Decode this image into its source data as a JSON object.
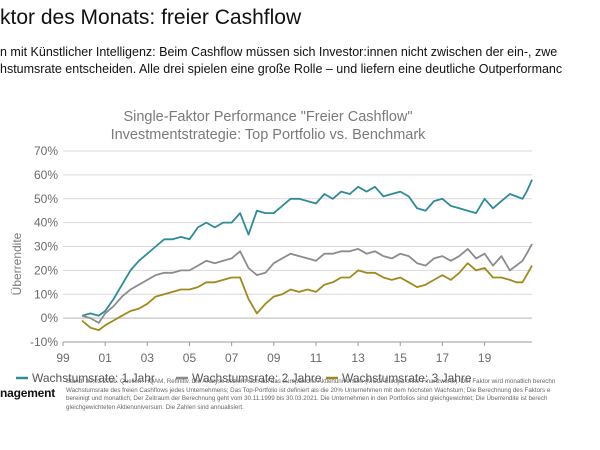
{
  "page": {
    "headline": "ktor des Monats: freier Cashflow",
    "intro_lines": [
      "n mit Künstlicher Intelligenz: Beim Cashflow müssen sich Investor:innen nicht zwischen der ein-, zwe",
      "hstumsrate entscheiden. Alle drei spielen eine große Rolle – und liefern eine deutliche Outperformanc"
    ],
    "brand": "nagement",
    "footnote_lines": [
      "Stand: 30.03.2021. Quellen: HQAM, Refinitiv. Die Analyse bezieht sich auf das europäische Aktienuniversum (MSCI Europa ohne Finanzwerte). Der Faktor wird monatlich berechn",
      "Wachstumsrate des freien Cashflows jedes Unternehmens; Das Top-Portfolio ist definiert als die 20% Unternehmen mit dem höchsten Wachstum; Die Berechnung des Faktors e",
      "bereinigt und monatlich; Der Zeitraum der Berechnung geht vom 30.11.1999 bis 30.03.2021. Die Unternehmen in den Portfolios sind gleichgewichtet; Die Überrendite ist berech",
      "gleichgewichteten Aktienuniversum. Die Zahlen sind annualisiert."
    ]
  },
  "chart_data": {
    "type": "line",
    "title_lines": [
      "Single-Faktor Performance \"Freier Cashflow\"",
      "Investmentstrategie: Top Portfolio vs. Benchmark"
    ],
    "xlabel": "",
    "ylabel": "Überrendite",
    "x_tick_labels": [
      "99",
      "01",
      "03",
      "05",
      "07",
      "09",
      "11",
      "13",
      "15",
      "17",
      "19"
    ],
    "x_tick_years": [
      1999,
      2001,
      2003,
      2005,
      2007,
      2009,
      2011,
      2013,
      2015,
      2017,
      2019
    ],
    "xlim": [
      1999.0,
      2021.25
    ],
    "y_tick_labels": [
      "-10%",
      "0%",
      "10%",
      "20%",
      "30%",
      "40%",
      "50%",
      "60%",
      "70%"
    ],
    "y_ticks": [
      -10,
      0,
      10,
      20,
      30,
      40,
      50,
      60,
      70
    ],
    "ylim": [
      -10,
      70
    ],
    "grid": true,
    "legend_position": "bottom",
    "series": [
      {
        "name": "Wachstumsrate: 1 Jahr",
        "color": "#2e8b99",
        "x": [
          1999.9,
          2000.3,
          2000.7,
          2001.0,
          2001.4,
          2001.8,
          2002.2,
          2002.6,
          2003.0,
          2003.4,
          2003.8,
          2004.2,
          2004.6,
          2005.0,
          2005.4,
          2005.8,
          2006.2,
          2006.6,
          2007.0,
          2007.4,
          2007.8,
          2008.2,
          2008.6,
          2009.0,
          2009.4,
          2009.8,
          2010.2,
          2010.6,
          2011.0,
          2011.4,
          2011.8,
          2012.2,
          2012.6,
          2013.0,
          2013.4,
          2013.8,
          2014.2,
          2014.6,
          2015.0,
          2015.4,
          2015.8,
          2016.2,
          2016.6,
          2017.0,
          2017.4,
          2017.8,
          2018.2,
          2018.6,
          2019.0,
          2019.4,
          2019.8,
          2020.2,
          2020.5,
          2020.8,
          2021.0,
          2021.25
        ],
        "values": [
          1,
          2,
          1,
          3,
          8,
          14,
          20,
          24,
          27,
          30,
          33,
          33,
          34,
          33,
          38,
          40,
          38,
          40,
          40,
          44,
          35,
          45,
          44,
          44,
          47,
          50,
          50,
          49,
          48,
          52,
          50,
          53,
          52,
          55,
          53,
          55,
          51,
          52,
          53,
          51,
          46,
          45,
          49,
          50,
          47,
          46,
          45,
          44,
          50,
          46,
          49,
          52,
          51,
          50,
          53,
          58
        ]
      },
      {
        "name": "Wachstumsrate: 2 Jahre",
        "color": "#8c8c8c",
        "x": [
          1999.9,
          2000.3,
          2000.7,
          2001.0,
          2001.4,
          2001.8,
          2002.2,
          2002.6,
          2003.0,
          2003.4,
          2003.8,
          2004.2,
          2004.6,
          2005.0,
          2005.4,
          2005.8,
          2006.2,
          2006.6,
          2007.0,
          2007.4,
          2007.8,
          2008.2,
          2008.6,
          2009.0,
          2009.4,
          2009.8,
          2010.2,
          2010.6,
          2011.0,
          2011.4,
          2011.8,
          2012.2,
          2012.6,
          2013.0,
          2013.4,
          2013.8,
          2014.2,
          2014.6,
          2015.0,
          2015.4,
          2015.8,
          2016.2,
          2016.6,
          2017.0,
          2017.4,
          2017.8,
          2018.2,
          2018.6,
          2019.0,
          2019.4,
          2019.8,
          2020.2,
          2020.5,
          2020.8,
          2021.0,
          2021.25
        ],
        "values": [
          1,
          0,
          -2,
          2,
          5,
          9,
          12,
          14,
          16,
          18,
          19,
          19,
          20,
          20,
          22,
          24,
          23,
          24,
          25,
          28,
          21,
          18,
          19,
          23,
          25,
          27,
          26,
          25,
          24,
          27,
          27,
          28,
          28,
          29,
          27,
          28,
          26,
          25,
          27,
          26,
          23,
          22,
          25,
          26,
          24,
          26,
          29,
          25,
          27,
          22,
          26,
          20,
          22,
          24,
          27,
          31
        ]
      },
      {
        "name": "Wachstumsrate: 3 Jahre",
        "color": "#a08a1e",
        "x": [
          1999.9,
          2000.3,
          2000.7,
          2001.0,
          2001.4,
          2001.8,
          2002.2,
          2002.6,
          2003.0,
          2003.4,
          2003.8,
          2004.2,
          2004.6,
          2005.0,
          2005.4,
          2005.8,
          2006.2,
          2006.6,
          2007.0,
          2007.4,
          2007.8,
          2008.2,
          2008.6,
          2009.0,
          2009.4,
          2009.8,
          2010.2,
          2010.6,
          2011.0,
          2011.4,
          2011.8,
          2012.2,
          2012.6,
          2013.0,
          2013.4,
          2013.8,
          2014.2,
          2014.6,
          2015.0,
          2015.4,
          2015.8,
          2016.2,
          2016.6,
          2017.0,
          2017.4,
          2017.8,
          2018.2,
          2018.6,
          2019.0,
          2019.4,
          2019.8,
          2020.2,
          2020.5,
          2020.8,
          2021.0,
          2021.25
        ],
        "values": [
          -1,
          -4,
          -5,
          -3,
          -1,
          1,
          3,
          4,
          6,
          9,
          10,
          11,
          12,
          12,
          13,
          15,
          15,
          16,
          17,
          17,
          8,
          2,
          6,
          9,
          10,
          12,
          11,
          12,
          11,
          14,
          15,
          17,
          17,
          20,
          19,
          19,
          17,
          16,
          17,
          15,
          13,
          14,
          16,
          18,
          16,
          19,
          23,
          20,
          21,
          17,
          17,
          16,
          15,
          15,
          18,
          22
        ]
      }
    ]
  }
}
